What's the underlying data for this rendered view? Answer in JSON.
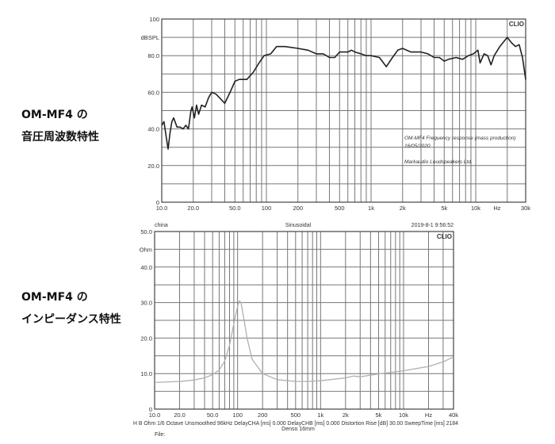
{
  "captions": {
    "fr_line1": "OM-MF4 の",
    "fr_line2": "音圧周波数特性",
    "imp_line1": "OM-MF4 の",
    "imp_line2": "インピーダンス特性"
  },
  "chart_data": [
    {
      "type": "line",
      "xscale": "log",
      "xlim": [
        10,
        30000
      ],
      "ylim": [
        0,
        100
      ],
      "ylabel": "dBSPL",
      "xunit": "Hz",
      "grid": true,
      "brand": "CLIO",
      "line_color": "#222222",
      "xticks": [
        {
          "v": 10,
          "l": "10.0"
        },
        {
          "v": 20,
          "l": "20.0"
        },
        {
          "v": 50,
          "l": "50.0"
        },
        {
          "v": 100,
          "l": "100"
        },
        {
          "v": 200,
          "l": "200"
        },
        {
          "v": 500,
          "l": "500"
        },
        {
          "v": 1000,
          "l": "1k"
        },
        {
          "v": 2000,
          "l": "2k"
        },
        {
          "v": 5000,
          "l": "5k"
        },
        {
          "v": 10000,
          "l": "10k"
        },
        {
          "v": 16000,
          "l": "Hz"
        },
        {
          "v": 30000,
          "l": "30k"
        }
      ],
      "yticks": [
        {
          "v": 0,
          "l": "0"
        },
        {
          "v": 20,
          "l": "20.0"
        },
        {
          "v": 40,
          "l": "40.0"
        },
        {
          "v": 60,
          "l": "60.0"
        },
        {
          "v": 80,
          "l": "80.0"
        },
        {
          "v": 100,
          "l": "100"
        }
      ],
      "annotations": [
        "OM-MF4 Frequency response (mass production)",
        "16/05/2020",
        "Markaudio Loudspeakers Ltd."
      ],
      "x": [
        10,
        10.5,
        11,
        11.5,
        12,
        12.5,
        13,
        14,
        15,
        16,
        17,
        18,
        19,
        19.5,
        20.5,
        21.5,
        22.5,
        24,
        26,
        28,
        30,
        33,
        37,
        40,
        45,
        50,
        55,
        65,
        75,
        85,
        95,
        110,
        125,
        150,
        200,
        250,
        300,
        350,
        400,
        450,
        500,
        600,
        650,
        700,
        800,
        900,
        1000,
        1200,
        1400,
        1600,
        1800,
        2000,
        2400,
        3000,
        3500,
        4000,
        4500,
        5000,
        5500,
        6500,
        7500,
        8500,
        9500,
        10500,
        11000,
        12000,
        13000,
        14000,
        15000,
        17000,
        20000,
        22000,
        24000,
        26000,
        28000,
        30000
      ],
      "y": [
        42,
        44,
        36,
        29,
        38,
        44,
        46,
        41,
        41,
        40,
        42,
        40,
        50,
        52,
        46,
        53,
        48,
        53,
        52,
        57,
        60,
        59,
        56,
        54,
        60,
        66,
        67,
        67,
        71,
        76,
        80,
        81,
        85,
        85,
        84,
        83,
        81,
        81,
        79,
        79,
        82,
        82,
        83,
        82,
        81,
        80,
        80,
        79,
        74,
        79,
        83,
        84,
        82,
        82,
        81,
        79,
        79,
        77,
        78,
        79,
        78,
        80,
        81,
        83,
        76,
        81,
        80,
        75,
        80,
        85,
        90,
        87,
        85,
        86,
        79,
        67
      ]
    },
    {
      "type": "line",
      "xscale": "log",
      "xlim": [
        10,
        40000
      ],
      "ylim": [
        0,
        50
      ],
      "ylabel": "Ohm",
      "xunit": "Hz",
      "grid": true,
      "brand": "CLIO",
      "line_color": "#b0b0b0",
      "header": {
        "left": "china",
        "center": "Sinusoidal",
        "right": "2019-8-1 9:56:52"
      },
      "footer": {
        "settings": "H B   Ohm    1/6 Octave    Unsmoothed    96kHz    DelayCHA [ms] 0.000    DelayCHB [ms] 0.000    Distortion Rise [dB] 30.00    SweepTime [ms] 2184",
        "device": "Denso 16mm",
        "file": "File:"
      },
      "xticks": [
        {
          "v": 10,
          "l": "10.0"
        },
        {
          "v": 20,
          "l": "20.0"
        },
        {
          "v": 50,
          "l": "50.0"
        },
        {
          "v": 100,
          "l": "100"
        },
        {
          "v": 200,
          "l": "200"
        },
        {
          "v": 500,
          "l": "500"
        },
        {
          "v": 1000,
          "l": "1k"
        },
        {
          "v": 2000,
          "l": "2k"
        },
        {
          "v": 5000,
          "l": "5k"
        },
        {
          "v": 10000,
          "l": "10k"
        },
        {
          "v": 20000,
          "l": "Hz"
        },
        {
          "v": 40000,
          "l": "40k"
        }
      ],
      "yticks": [
        {
          "v": 0,
          "l": "0"
        },
        {
          "v": 10,
          "l": "10.0"
        },
        {
          "v": 20,
          "l": "20.0"
        },
        {
          "v": 30,
          "l": "30.0"
        },
        {
          "v": 40,
          "l": "40.0"
        },
        {
          "v": 50,
          "l": "50.0"
        }
      ],
      "x": [
        10,
        20,
        30,
        40,
        50,
        60,
        70,
        80,
        90,
        100,
        105,
        110,
        120,
        130,
        150,
        200,
        300,
        500,
        700,
        1000,
        2000,
        2500,
        3000,
        5000,
        10000,
        20000,
        30000,
        40000
      ],
      "y": [
        7.5,
        7.8,
        8.2,
        8.8,
        9.7,
        11,
        13.5,
        18,
        24,
        29,
        30.5,
        30,
        25,
        20,
        14,
        10,
        8.3,
        7.8,
        7.8,
        8,
        8.8,
        9.3,
        9.1,
        9.9,
        10.8,
        12,
        13.3,
        14.7
      ]
    }
  ]
}
